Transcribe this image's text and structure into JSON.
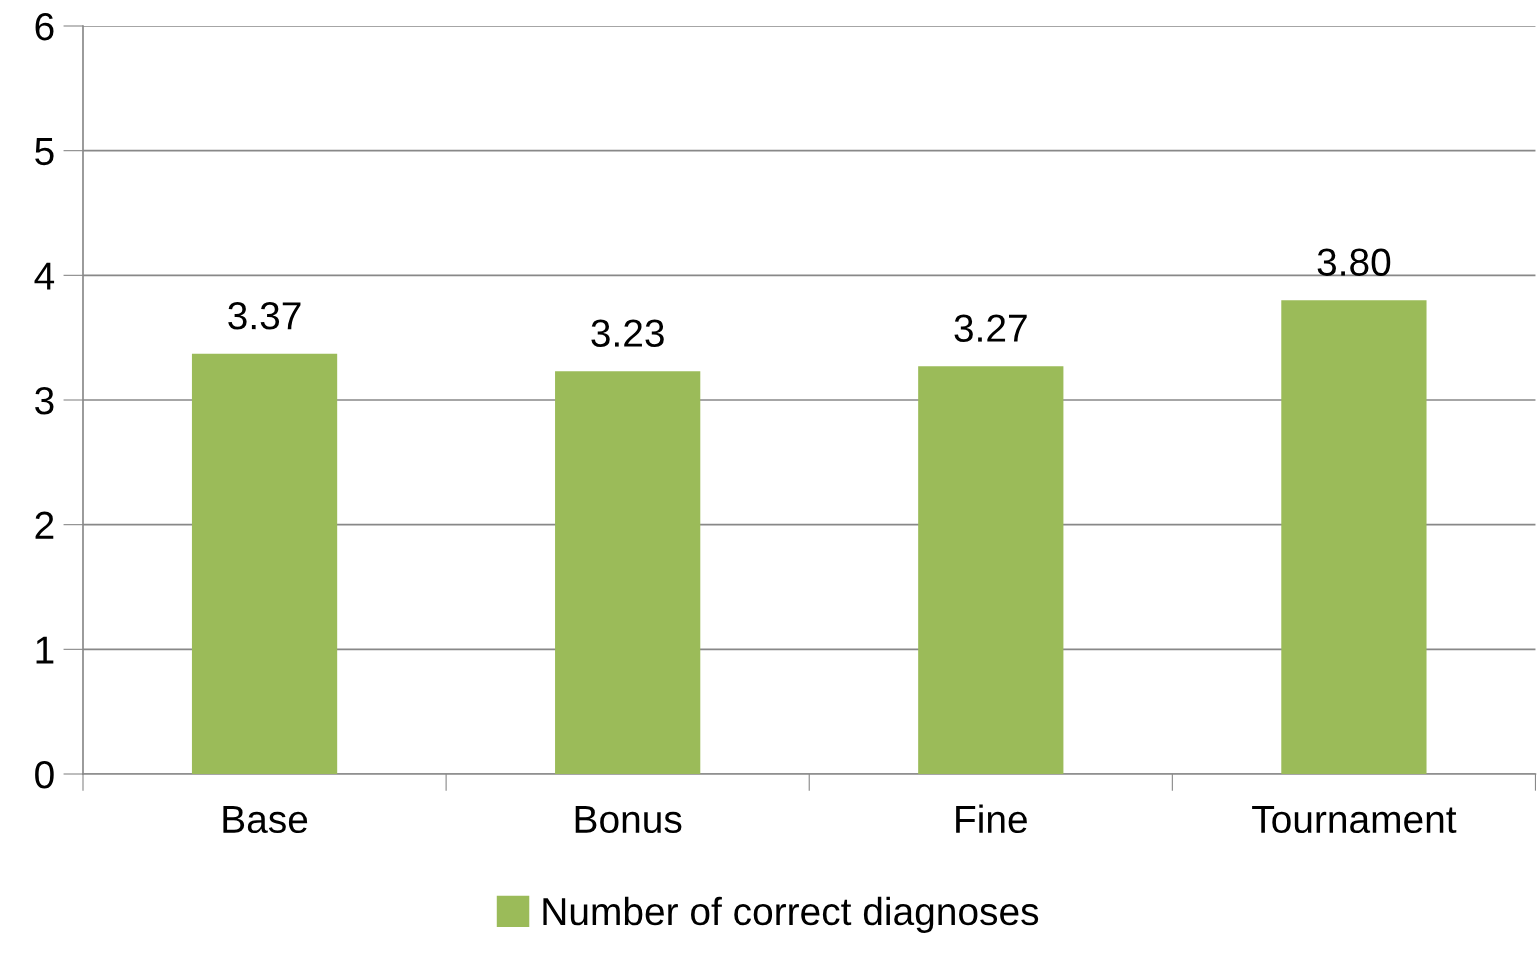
{
  "chart_data": {
    "type": "bar",
    "categories": [
      "Base",
      "Bonus",
      "Fine",
      "Tournament"
    ],
    "series": [
      {
        "name": "Number of correct diagnoses",
        "color": "#9bbb59",
        "values": [
          3.37,
          3.23,
          3.27,
          3.8
        ],
        "value_labels": [
          "3.37",
          "3.23",
          "3.27",
          "3.80"
        ]
      }
    ],
    "ylim": [
      0,
      6
    ],
    "yticks": [
      0,
      1,
      2,
      3,
      4,
      5,
      6
    ],
    "grid": "y",
    "legend": "bottom"
  }
}
